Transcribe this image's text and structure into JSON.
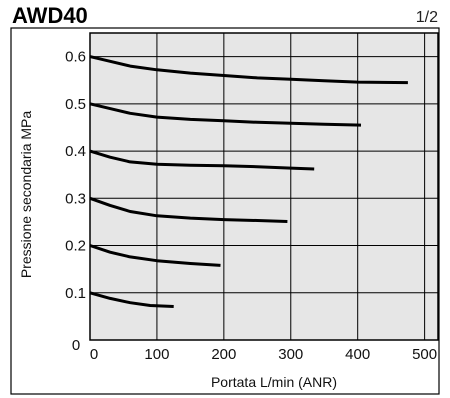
{
  "header": {
    "title": "AWD40",
    "page": "1/2"
  },
  "colors": {
    "plot_background": "#e6e6e6",
    "grid": "#000000",
    "curve": "#000000"
  },
  "chart_data": {
    "type": "line",
    "title": "AWD40",
    "xlabel": "Portata L/min (ANR)",
    "ylabel": "Pressione secondaria  MPa",
    "xlim": [
      0,
      520
    ],
    "ylim": [
      0,
      0.65
    ],
    "grid": true,
    "xticks": [
      0,
      100,
      200,
      300,
      400,
      500
    ],
    "xtick_labels": [
      "0",
      "100",
      "200",
      "300",
      "400",
      "500"
    ],
    "yticks": [
      0.1,
      0.2,
      0.3,
      0.4,
      0.5,
      0.6
    ],
    "ytick_labels": [
      "0.1",
      "0.2",
      "0.3",
      "0.4",
      "0.5",
      "0.6"
    ],
    "origin_label": "0",
    "series": [
      {
        "x": [
          0,
          30,
          60,
          100,
          150,
          200,
          250,
          300,
          350,
          400,
          475
        ],
        "y": [
          0.6,
          0.59,
          0.58,
          0.572,
          0.565,
          0.56,
          0.555,
          0.552,
          0.549,
          0.546,
          0.545
        ]
      },
      {
        "x": [
          0,
          30,
          60,
          100,
          150,
          200,
          250,
          300,
          350,
          405
        ],
        "y": [
          0.5,
          0.49,
          0.48,
          0.472,
          0.467,
          0.464,
          0.461,
          0.459,
          0.457,
          0.455
        ]
      },
      {
        "x": [
          0,
          30,
          60,
          100,
          150,
          200,
          250,
          300,
          335
        ],
        "y": [
          0.4,
          0.387,
          0.377,
          0.372,
          0.37,
          0.369,
          0.367,
          0.364,
          0.362
        ]
      },
      {
        "x": [
          0,
          30,
          60,
          100,
          150,
          200,
          250,
          295
        ],
        "y": [
          0.3,
          0.285,
          0.272,
          0.263,
          0.258,
          0.255,
          0.253,
          0.251
        ]
      },
      {
        "x": [
          0,
          30,
          60,
          100,
          150,
          195
        ],
        "y": [
          0.2,
          0.186,
          0.176,
          0.168,
          0.162,
          0.158
        ]
      },
      {
        "x": [
          0,
          30,
          60,
          90,
          125
        ],
        "y": [
          0.1,
          0.088,
          0.079,
          0.073,
          0.071
        ]
      }
    ]
  }
}
